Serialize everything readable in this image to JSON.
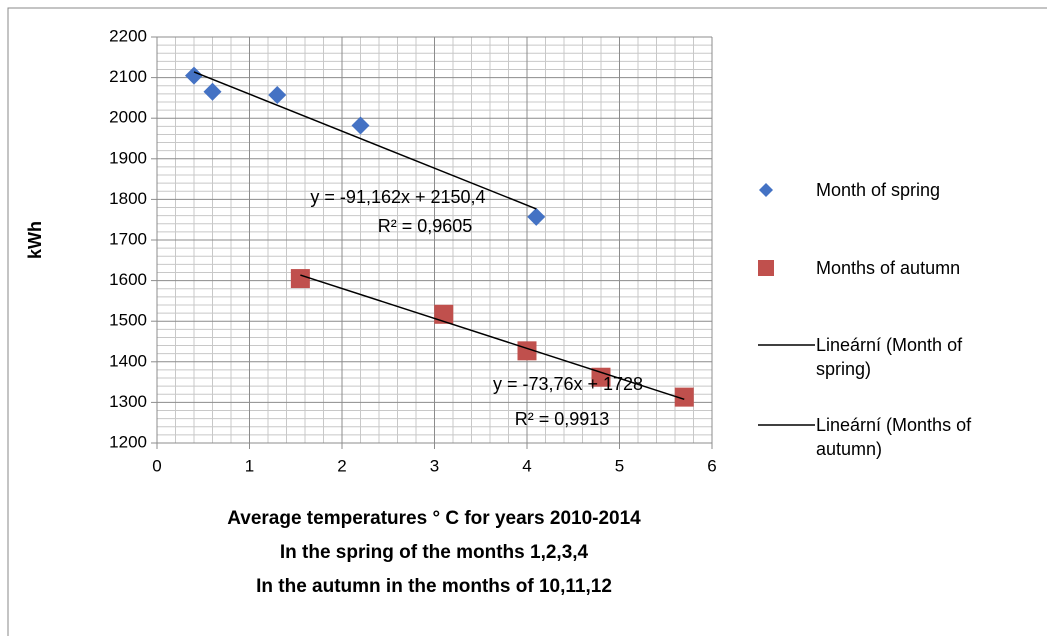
{
  "chart_data": {
    "type": "scatter",
    "x_label": [
      "Average temperatures ° C for years 2010-2014",
      "In the spring of the months 1,2,3,4",
      "In the autumn in the months of 10,11,12"
    ],
    "y_label": "kWh",
    "xlim": [
      0,
      6
    ],
    "xticks": [
      0,
      1,
      2,
      3,
      4,
      5,
      6
    ],
    "ylim": [
      1200,
      2200
    ],
    "yticks": [
      1200,
      1300,
      1400,
      1500,
      1600,
      1700,
      1800,
      1900,
      2000,
      2100,
      2200
    ],
    "grid": true,
    "legend": "right",
    "series": [
      {
        "name": "Month of spring",
        "color": "#4472c4",
        "marker": "diamond",
        "x": [
          0.4,
          0.6,
          1.3,
          2.2,
          4.1
        ],
        "values": [
          2105,
          2065,
          2057,
          1982,
          1757
        ]
      },
      {
        "name": "Months of autumn",
        "color": "#c0504d",
        "marker": "square",
        "x": [
          1.55,
          3.1,
          4.0,
          4.8,
          5.7
        ],
        "values": [
          1605,
          1517,
          1427,
          1362,
          1313
        ]
      }
    ],
    "trendlines": [
      {
        "name": "Lineární (Month of spring)",
        "color": "#000000",
        "x": [
          0.4,
          4.1
        ],
        "values": [
          2113.9,
          1776.6
        ],
        "equation": "y = -91,162x + 2150,4",
        "r2": "R² = 0,9605"
      },
      {
        "name": "Lineární (Months of autumn)",
        "color": "#000000",
        "x": [
          1.55,
          5.7
        ],
        "values": [
          1613.7,
          1307.6
        ],
        "equation": "y = -73,76x + 1728",
        "r2": "R² = 0,9913"
      }
    ]
  }
}
